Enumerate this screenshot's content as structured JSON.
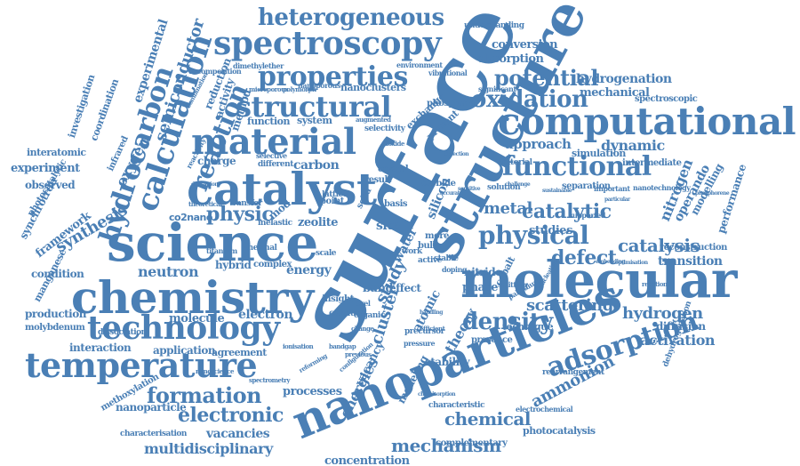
{
  "color": "#4a7fb5",
  "words": [
    {
      "text": "surface"
    },
    {
      "text": "nanoparticles"
    },
    {
      "text": "molecular"
    },
    {
      "text": "chemistry"
    },
    {
      "text": "science"
    },
    {
      "text": "computational"
    },
    {
      "text": "catalyst"
    },
    {
      "text": "structure"
    },
    {
      "text": "material"
    },
    {
      "text": "spectroscopy"
    },
    {
      "text": "temperature"
    },
    {
      "text": "technology"
    },
    {
      "text": "properties"
    },
    {
      "text": "structural"
    },
    {
      "text": "functional"
    },
    {
      "text": "physical"
    },
    {
      "text": "heterogeneous"
    },
    {
      "text": "adsorption"
    },
    {
      "text": "density"
    },
    {
      "text": "calculation"
    },
    {
      "text": "hydrocarbon"
    },
    {
      "text": "reaction"
    },
    {
      "text": "oxidation"
    },
    {
      "text": "potential"
    },
    {
      "text": "catalytic"
    },
    {
      "text": "formation"
    },
    {
      "text": "electronic"
    },
    {
      "text": "mechanism"
    },
    {
      "text": "ammonion"
    },
    {
      "text": "chemical"
    },
    {
      "text": "defect"
    },
    {
      "text": "catalysis"
    },
    {
      "text": "hydrogen"
    },
    {
      "text": "scattering"
    },
    {
      "text": "metal"
    },
    {
      "text": "physic"
    },
    {
      "text": "semiconductor"
    },
    {
      "text": "experimental"
    },
    {
      "text": "cluster"
    },
    {
      "text": "dynamic"
    },
    {
      "text": "approach"
    },
    {
      "text": "nitrogen"
    },
    {
      "text": "hydrogenation"
    },
    {
      "text": "mechanical"
    },
    {
      "text": "conversion"
    },
    {
      "text": "absorption"
    },
    {
      "text": "neutron"
    },
    {
      "text": "multidisciplinary"
    },
    {
      "text": "concentration"
    },
    {
      "text": "energies"
    },
    {
      "text": "activation"
    },
    {
      "text": "diffusion"
    },
    {
      "text": "transition"
    },
    {
      "text": "synthesis"
    },
    {
      "text": "oxygen"
    },
    {
      "text": "studies"
    },
    {
      "text": "study"
    },
    {
      "text": "theory"
    },
    {
      "text": "energy"
    },
    {
      "text": "electron"
    },
    {
      "text": "molecule"
    },
    {
      "text": "application"
    },
    {
      "text": "interaction"
    },
    {
      "text": "production"
    },
    {
      "text": "condition"
    },
    {
      "text": "framework"
    },
    {
      "text": "experiment"
    },
    {
      "text": "interatomic"
    },
    {
      "text": "coordination"
    },
    {
      "text": "investigation"
    },
    {
      "text": "observed"
    },
    {
      "text": "synchrotron"
    },
    {
      "text": "photocatalytic"
    },
    {
      "text": "manganese"
    },
    {
      "text": "molybdenum"
    },
    {
      "text": "methoxylation"
    },
    {
      "text": "nanoparticle"
    },
    {
      "text": "characterisation"
    },
    {
      "text": "vacancies"
    },
    {
      "text": "processes"
    },
    {
      "text": "agreement"
    },
    {
      "text": "dissociation"
    },
    {
      "text": "nanoclusters"
    },
    {
      "text": "phosphate"
    },
    {
      "text": "understanding"
    },
    {
      "text": "environment"
    },
    {
      "text": "vibrational"
    },
    {
      "text": "spectroscopic"
    },
    {
      "text": "significant"
    },
    {
      "text": "simulation"
    },
    {
      "text": "intermediate"
    },
    {
      "text": "nanotechnology"
    },
    {
      "text": "important"
    },
    {
      "text": "separation"
    },
    {
      "text": "supported"
    },
    {
      "text": "operando"
    },
    {
      "text": "modelling"
    },
    {
      "text": "performance"
    },
    {
      "text": "reconstruction"
    },
    {
      "text": "carbon"
    },
    {
      "text": "zeolite"
    },
    {
      "text": "charge"
    },
    {
      "text": "different"
    },
    {
      "text": "selective"
    },
    {
      "text": "function"
    },
    {
      "text": "system"
    },
    {
      "text": "method"
    },
    {
      "text": "activity"
    },
    {
      "text": "reduction"
    },
    {
      "text": "decomposition"
    },
    {
      "text": "dimethylether"
    },
    {
      "text": "nanoporous"
    },
    {
      "text": "microporous"
    },
    {
      "text": "polymorph"
    },
    {
      "text": "hybrid"
    },
    {
      "text": "complex"
    },
    {
      "text": "thermal"
    },
    {
      "text": "titanium"
    },
    {
      "text": "inelastic"
    },
    {
      "text": "nitride"
    },
    {
      "text": "cobalt"
    },
    {
      "text": "phase"
    },
    {
      "text": "band"
    },
    {
      "text": "site"
    },
    {
      "text": "effect"
    },
    {
      "text": "water"
    },
    {
      "text": "atomic"
    },
    {
      "text": "silicon"
    },
    {
      "text": "carbide"
    },
    {
      "text": "crystal"
    },
    {
      "text": "solution"
    },
    {
      "text": "technique"
    },
    {
      "text": "presence"
    },
    {
      "text": "stability"
    },
    {
      "text": "vacancy"
    },
    {
      "text": "modeling"
    },
    {
      "text": "electrochemical"
    },
    {
      "text": "photocatalysis"
    },
    {
      "text": "complementary"
    },
    {
      "text": "characteristic"
    },
    {
      "text": "rearrangement"
    },
    {
      "text": "dehydrogenation"
    },
    {
      "text": "editorial"
    },
    {
      "text": "present"
    },
    {
      "text": "exchange"
    },
    {
      "text": "result"
    },
    {
      "text": "bulk"
    },
    {
      "text": "more"
    },
    {
      "text": "calcium"
    },
    {
      "text": "insight"
    },
    {
      "text": "organic"
    },
    {
      "text": "level"
    },
    {
      "text": "active"
    },
    {
      "text": "stable"
    },
    {
      "text": "point"
    },
    {
      "text": "lattice"
    },
    {
      "text": "solid"
    },
    {
      "text": "basis"
    },
    {
      "text": "work"
    },
    {
      "text": "selectivity"
    },
    {
      "text": "augmented"
    },
    {
      "text": "dioxide"
    },
    {
      "text": "transfer"
    },
    {
      "text": "theoretical"
    },
    {
      "text": "diffraction"
    },
    {
      "text": "reactivity"
    },
    {
      "text": "combination"
    },
    {
      "text": "infrared"
    },
    {
      "text": "co2nano"
    },
    {
      "text": "mod"
    },
    {
      "text": "scale"
    },
    {
      "text": "doping"
    },
    {
      "text": "splitting"
    },
    {
      "text": "palladium"
    },
    {
      "text": "nucleation"
    },
    {
      "text": "optimisation"
    },
    {
      "text": "sustainable"
    },
    {
      "text": "challenge"
    },
    {
      "text": "accurate"
    },
    {
      "text": "sensitive"
    },
    {
      "text": "nanoscience"
    },
    {
      "text": "spectrometry"
    },
    {
      "text": "ionisation"
    },
    {
      "text": "bandgap"
    },
    {
      "text": "change"
    },
    {
      "text": "pressure"
    },
    {
      "text": "efficient"
    },
    {
      "text": "precursor"
    },
    {
      "text": "previous"
    },
    {
      "text": "reforming"
    },
    {
      "text": "configuration"
    },
    {
      "text": "embedding"
    },
    {
      "text": "phosphorene"
    },
    {
      "text": "reaction"
    },
    {
      "text": "particular"
    },
    {
      "text": "detection"
    },
    {
      "text": "chemisorption"
    },
    {
      "text": "handling"
    }
  ]
}
